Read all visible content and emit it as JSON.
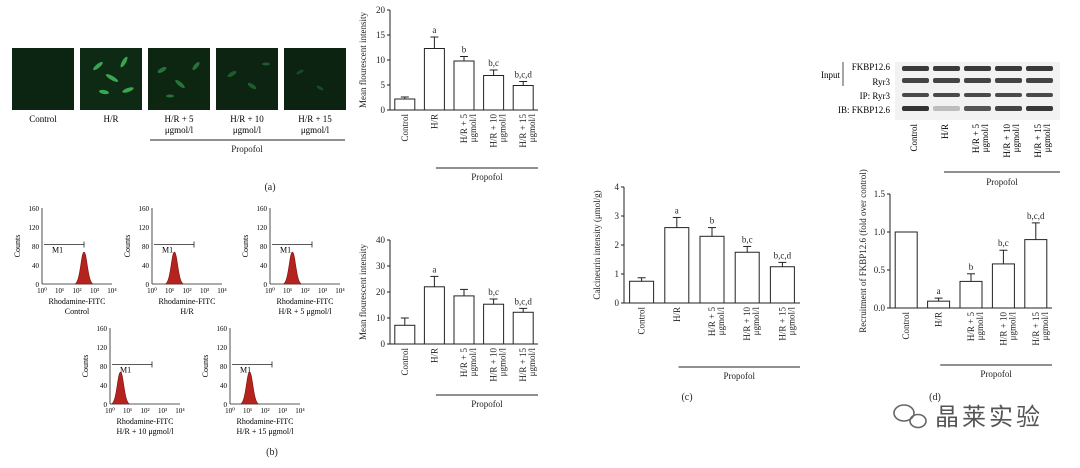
{
  "panel_a": {
    "panel_label": "(a)",
    "image_labels": [
      "Control",
      "H/R",
      "H/R + 5",
      "H/R + 10",
      "H/R + 15"
    ],
    "dose_unit": "μgmol/l",
    "group_label": "Propofol",
    "image_caption_lines": [
      [
        "Control"
      ],
      [
        "H/R"
      ],
      [
        "H/R + 5",
        "μgmol/l"
      ],
      [
        "H/R + 10",
        "μgmol/l"
      ],
      [
        "H/R + 15",
        "μgmol/l"
      ]
    ]
  },
  "panel_b": {
    "panel_label": "(b)",
    "histograms": [
      {
        "axis_label": "Rhodamine-FITC",
        "group": "Control",
        "marker": "M1"
      },
      {
        "axis_label": "Rhodamine-FITC",
        "group": "H/R",
        "marker": "M1"
      },
      {
        "axis_label": "Rhodamine-FITC",
        "group": "H/R + 5 μgmol/l",
        "marker": "M1"
      },
      {
        "axis_label": "Rhodamine-FITC",
        "group": "H/R + 10 μgmol/l",
        "marker": "M1"
      },
      {
        "axis_label": "Rhodamine-FITC",
        "group": "H/R + 15 μgmol/l",
        "marker": "M1"
      }
    ],
    "y_label": "Counts",
    "y_ticks": [
      "0",
      "40",
      "80",
      "120",
      "160"
    ],
    "x_ticks": [
      "10⁰",
      "10¹",
      "10²",
      "10³",
      "10⁴"
    ]
  },
  "panel_c": {
    "panel_label": "(c)"
  },
  "panel_d": {
    "panel_label": "(d)",
    "blot_labels": [
      "Input",
      "FKBP12.6",
      "Ryr3",
      "IP: Ryr3",
      "IB: FKBP12.6"
    ],
    "lanes": [
      "Control",
      "H/R",
      "H/R + 5",
      "H/R + 10",
      "H/R + 15"
    ],
    "lane_units": [
      "",
      "",
      "μgmol/l",
      "μgmol/l",
      "μgmol/l"
    ],
    "group_label": "Propofol"
  },
  "watermark": {
    "text": "晶莱实验"
  },
  "chart_data": [
    {
      "id": "a",
      "type": "bar",
      "title": "",
      "ylabel": "Mean flourescent intensity",
      "xlabel": "",
      "categories": [
        "Control",
        "H/R",
        "H/R + 5",
        "H/R + 10",
        "H/R + 15"
      ],
      "category_units": [
        "",
        "",
        "μgmol/l",
        "μgmol/l",
        "μgmol/l"
      ],
      "values": [
        2.2,
        12.3,
        9.8,
        6.9,
        4.9
      ],
      "errors": [
        0.4,
        2.3,
        0.9,
        1.1,
        0.8
      ],
      "annotations": [
        "",
        "a",
        "b",
        "b,c",
        "b,c,d"
      ],
      "ylim": [
        0,
        20
      ],
      "yticks": [
        0,
        5,
        10,
        15,
        20
      ],
      "group_label": "Propofol"
    },
    {
      "id": "b",
      "type": "bar",
      "title": "",
      "ylabel": "Mean flourescent intensity",
      "xlabel": "",
      "categories": [
        "Control",
        "H/R",
        "H/R + 5",
        "H/R + 10",
        "H/R + 15"
      ],
      "category_units": [
        "",
        "",
        "μgmol/l",
        "μgmol/l",
        "μgmol/l"
      ],
      "values": [
        7.2,
        22.0,
        18.5,
        15.3,
        12.2
      ],
      "errors": [
        2.8,
        4.0,
        2.5,
        2.0,
        1.5
      ],
      "annotations": [
        "",
        "a",
        "",
        "b,c",
        "b,c,d"
      ],
      "ylim": [
        0,
        40
      ],
      "yticks": [
        0,
        10,
        20,
        30,
        40
      ],
      "group_label": "Propofol"
    },
    {
      "id": "c",
      "type": "bar",
      "title": "",
      "ylabel": "Calcineurin intensity (μmol/g)",
      "xlabel": "",
      "categories": [
        "Control",
        "H/R",
        "H/R + 5",
        "H/R + 10",
        "H/R + 15"
      ],
      "category_units": [
        "",
        "",
        "μgmol/l",
        "μgmol/l",
        "μgmol/l"
      ],
      "values": [
        0.75,
        2.6,
        2.3,
        1.75,
        1.25
      ],
      "errors": [
        0.12,
        0.35,
        0.3,
        0.2,
        0.15
      ],
      "annotations": [
        "",
        "a",
        "b",
        "b,c",
        "b,c,d"
      ],
      "ylim": [
        0,
        4
      ],
      "yticks": [
        0,
        1,
        2,
        3,
        4
      ],
      "group_label": "Propofol"
    },
    {
      "id": "d",
      "type": "bar",
      "title": "",
      "ylabel": "Recruitment of FKBP12.6 (fold over control)",
      "xlabel": "",
      "categories": [
        "Control",
        "H/R",
        "H/R + 5",
        "H/R + 10",
        "H/R + 15"
      ],
      "category_units": [
        "",
        "",
        "μgmol/l",
        "μgmol/l",
        "μgmol/l"
      ],
      "values": [
        1.0,
        0.09,
        0.35,
        0.58,
        0.9
      ],
      "errors": [
        0.0,
        0.04,
        0.1,
        0.18,
        0.22
      ],
      "annotations": [
        "",
        "a",
        "b",
        "b,c",
        "b,c,d"
      ],
      "ylim": [
        0,
        1.5
      ],
      "yticks": [
        0.0,
        0.5,
        1.0,
        1.5
      ],
      "group_label": "Propofol"
    }
  ]
}
